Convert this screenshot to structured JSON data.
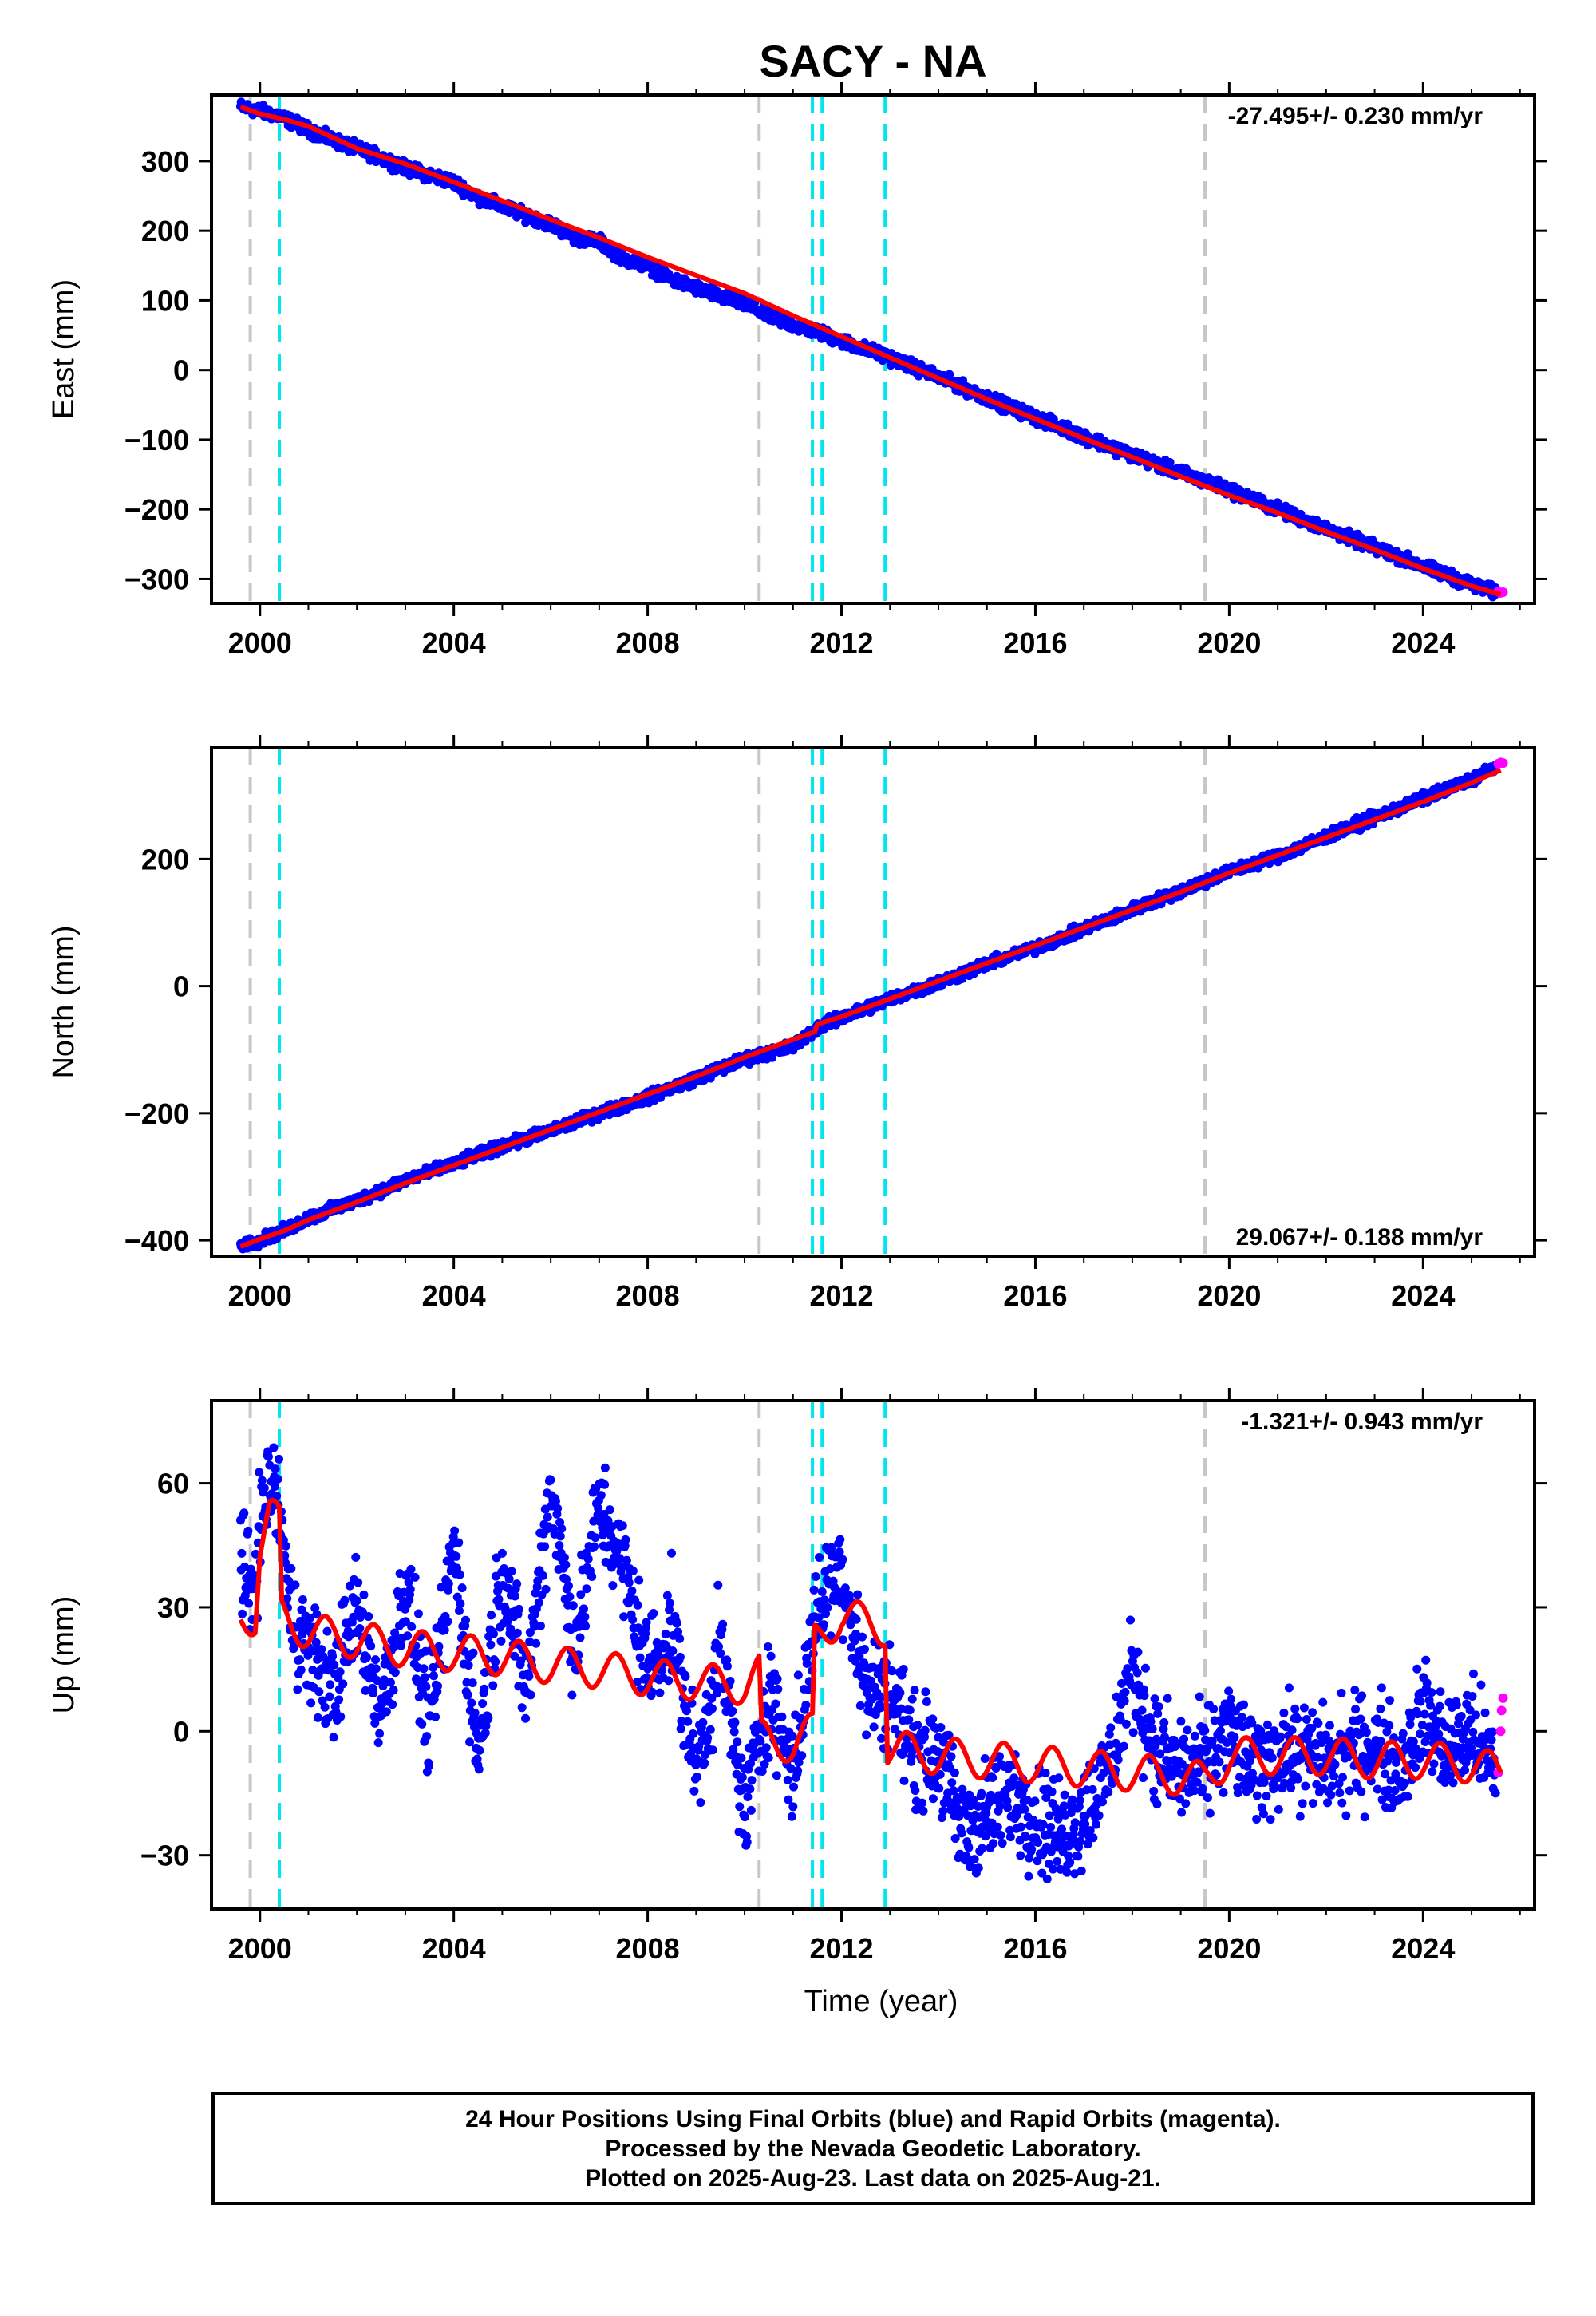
{
  "chart_data": [
    {
      "type": "scatter",
      "title": "SACY - NA",
      "ylabel": "East (mm)",
      "xlabel": "",
      "xlim": [
        1999.0,
        2026.3
      ],
      "ylim": [
        -335,
        395
      ],
      "xticks": [
        2000,
        2004,
        2008,
        2012,
        2016,
        2020,
        2024
      ],
      "yticks": [
        -300,
        -200,
        -100,
        0,
        100,
        200,
        300
      ],
      "ytick_labels": [
        "−300",
        "−200",
        "−100",
        "0",
        "100",
        "200",
        "300"
      ],
      "xtick_labels": [
        "2000",
        "2004",
        "2008",
        "2012",
        "2016",
        "2020",
        "2024"
      ],
      "annotation": "-27.495+/- 0.230 mm/yr",
      "annotation_position": "top-right",
      "grid": false,
      "velocity_mm_per_yr": -27.495,
      "series": [
        {
          "name": "Final Orbits",
          "color": "#0000ff",
          "x": [
            1999.6,
            2000.0,
            2000.4,
            2001.0,
            2001.5,
            2002.0,
            2002.5,
            2003.0,
            2003.5,
            2004.0,
            2004.5,
            2005.0,
            2005.5,
            2006.0,
            2006.5,
            2007.0,
            2007.5,
            2008.0,
            2008.5,
            2009.0,
            2009.5,
            2010.0,
            2010.5,
            2011.0,
            2011.5,
            2012.0,
            2012.5,
            2013.0,
            2014.0,
            2015.0,
            2016.0,
            2017.0,
            2018.0,
            2019.0,
            2019.5,
            2020.0,
            2021.0,
            2022.0,
            2023.0,
            2024.0,
            2025.0,
            2025.5
          ],
          "y": [
            378,
            372,
            365,
            345,
            330,
            318,
            305,
            290,
            280,
            270,
            248,
            235,
            222,
            210,
            190,
            185,
            160,
            150,
            130,
            118,
            105,
            95,
            78,
            65,
            55,
            42,
            30,
            18,
            -10,
            -40,
            -68,
            -95,
            -122,
            -148,
            -160,
            -172,
            -200,
            -228,
            -255,
            -282,
            -308,
            -320
          ]
        },
        {
          "name": "Rapid Orbits",
          "color": "#ff00ff",
          "x": [
            2025.55,
            2025.6,
            2025.65
          ],
          "y": [
            -318,
            -320,
            -319
          ]
        },
        {
          "name": "Model",
          "color": "#ff0000",
          "x": [
            1999.6,
            2000.0,
            2000.5,
            2001.0,
            2002.0,
            2003.0,
            2004.0,
            2005.0,
            2006.0,
            2007.0,
            2008.0,
            2009.0,
            2010.0,
            2011.0,
            2012.0,
            2013.0,
            2014.0,
            2015.0,
            2016.0,
            2017.0,
            2018.0,
            2019.0,
            2020.0,
            2021.0,
            2022.0,
            2023.0,
            2024.0,
            2025.0,
            2025.6
          ],
          "y": [
            378,
            368,
            360,
            350,
            318,
            296,
            270,
            243,
            216,
            190,
            162,
            136,
            110,
            78,
            48,
            18,
            -12,
            -42,
            -70,
            -98,
            -125,
            -153,
            -180,
            -205,
            -232,
            -258,
            -285,
            -310,
            -322
          ]
        }
      ],
      "vlines_gray": [
        1999.8,
        2010.3,
        2019.5
      ],
      "vlines_cyan": [
        2000.4,
        2011.4,
        2011.6,
        2012.9
      ]
    },
    {
      "type": "scatter",
      "title": "",
      "ylabel": "North (mm)",
      "xlabel": "",
      "xlim": [
        1999.0,
        2026.3
      ],
      "ylim": [
        -425,
        375
      ],
      "xticks": [
        2000,
        2004,
        2008,
        2012,
        2016,
        2020,
        2024
      ],
      "yticks": [
        -400,
        -200,
        0,
        200
      ],
      "ytick_labels": [
        "−400",
        "−200",
        "0",
        "200"
      ],
      "xtick_labels": [
        "2000",
        "2004",
        "2008",
        "2012",
        "2016",
        "2020",
        "2024"
      ],
      "annotation": "29.067+/- 0.188 mm/yr",
      "annotation_position": "bottom-right",
      "grid": false,
      "velocity_mm_per_yr": 29.067,
      "series": [
        {
          "name": "Final Orbits",
          "color": "#0000ff",
          "x": [
            1999.6,
            2000.0,
            2000.5,
            2001.0,
            2002.0,
            2003.0,
            2004.0,
            2005.0,
            2006.0,
            2007.0,
            2008.0,
            2009.0,
            2010.0,
            2011.0,
            2011.5,
            2012.0,
            2013.0,
            2014.0,
            2015.0,
            2016.0,
            2017.0,
            2018.0,
            2019.0,
            2020.0,
            2021.0,
            2022.0,
            2023.0,
            2024.0,
            2025.0,
            2025.5
          ],
          "y": [
            -408,
            -400,
            -385,
            -365,
            -338,
            -305,
            -280,
            -252,
            -228,
            -200,
            -175,
            -145,
            -115,
            -95,
            -65,
            -50,
            -20,
            5,
            35,
            60,
            90,
            120,
            150,
            180,
            205,
            235,
            265,
            295,
            325,
            345
          ]
        },
        {
          "name": "Rapid Orbits",
          "color": "#ff00ff",
          "x": [
            2025.55,
            2025.6,
            2025.65
          ],
          "y": [
            350,
            352,
            351
          ]
        },
        {
          "name": "Model",
          "color": "#ff0000",
          "x": [
            1999.6,
            2000.0,
            2000.5,
            2001.0,
            2002.0,
            2003.0,
            2004.0,
            2005.0,
            2006.0,
            2007.0,
            2008.0,
            2009.0,
            2010.0,
            2011.0,
            2011.45,
            2011.5,
            2012.0,
            2013.0,
            2014.0,
            2015.0,
            2016.0,
            2017.0,
            2018.0,
            2019.0,
            2020.0,
            2021.0,
            2022.0,
            2023.0,
            2024.0,
            2025.0,
            2025.6
          ],
          "y": [
            -410,
            -398,
            -385,
            -368,
            -340,
            -310,
            -282,
            -254,
            -226,
            -198,
            -170,
            -142,
            -112,
            -84,
            -72,
            -60,
            -48,
            -20,
            8,
            36,
            64,
            92,
            120,
            148,
            178,
            206,
            234,
            262,
            290,
            320,
            340
          ]
        }
      ],
      "vlines_gray": [
        1999.8,
        2010.3,
        2019.5
      ],
      "vlines_cyan": [
        2000.4,
        2011.4,
        2011.6,
        2012.9
      ]
    },
    {
      "type": "scatter",
      "title": "",
      "ylabel": "Up (mm)",
      "xlabel": "Time (year)",
      "xlim": [
        1999.0,
        2026.3
      ],
      "ylim": [
        -43,
        80
      ],
      "xticks": [
        2000,
        2004,
        2008,
        2012,
        2016,
        2020,
        2024
      ],
      "yticks": [
        -30,
        0,
        30,
        60
      ],
      "ytick_labels": [
        "−30",
        "0",
        "30",
        "60"
      ],
      "xtick_labels": [
        "2000",
        "2004",
        "2008",
        "2012",
        "2016",
        "2020",
        "2024"
      ],
      "annotation": "-1.321+/- 0.943 mm/yr",
      "annotation_position": "top-right",
      "grid": false,
      "velocity_mm_per_yr": -1.321,
      "series": [
        {
          "name": "Final Orbits",
          "color": "#0000ff",
          "x": [
            1999.6,
            1999.8,
            2000.0,
            2000.2,
            2000.4,
            2000.6,
            2001.0,
            2001.5,
            2002.0,
            2002.5,
            2003.0,
            2003.5,
            2004.0,
            2004.5,
            2005.0,
            2005.5,
            2006.0,
            2006.5,
            2007.0,
            2007.5,
            2008.0,
            2008.5,
            2009.0,
            2009.5,
            2010.0,
            2010.5,
            2011.0,
            2011.5,
            2012.0,
            2012.5,
            2013.0,
            2013.5,
            2014.0,
            2014.5,
            2015.0,
            2015.5,
            2016.0,
            2016.5,
            2017.0,
            2017.5,
            2018.0,
            2018.5,
            2019.0,
            2019.5,
            2020.0,
            2020.5,
            2021.0,
            2021.5,
            2022.0,
            2022.5,
            2023.0,
            2023.5,
            2024.0,
            2024.5,
            2025.0,
            2025.5
          ],
          "y": [
            45,
            30,
            50,
            60,
            55,
            30,
            20,
            10,
            30,
            5,
            35,
            0,
            45,
            -5,
            40,
            10,
            60,
            20,
            55,
            40,
            15,
            25,
            -10,
            20,
            -20,
            10,
            -10,
            30,
            40,
            10,
            10,
            -5,
            -5,
            -25,
            -20,
            -15,
            -20,
            -25,
            -20,
            -10,
            15,
            -5,
            -10,
            -8,
            0,
            -10,
            -5,
            -5,
            -8,
            -5,
            -3,
            -10,
            5,
            -5,
            0,
            -10
          ]
        },
        {
          "name": "Rapid Orbits",
          "color": "#ff00ff",
          "x": [
            2025.55,
            2025.6,
            2025.62,
            2025.65
          ],
          "y": [
            -10,
            0,
            5,
            8
          ]
        },
        {
          "name": "Model",
          "color": "#ff0000",
          "x": [
            1999.6,
            1999.9,
            2000.0,
            2000.2,
            2000.4,
            2000.45,
            2001.0,
            2002.0,
            2003.0,
            2004.0,
            2005.0,
            2006.0,
            2007.0,
            2008.0,
            2009.0,
            2010.0,
            2010.3,
            2010.35,
            2011.0,
            2011.4,
            2011.45,
            2012.0,
            2012.9,
            2012.95,
            2014.0,
            2015.0,
            2016.0,
            2017.0,
            2018.0,
            2019.0,
            2019.5,
            2020.0,
            2021.0,
            2022.0,
            2023.0,
            2024.0,
            2025.0,
            2025.6
          ],
          "y": [
            27,
            28,
            45,
            53,
            50,
            28,
            24,
            22,
            20,
            19,
            18,
            16,
            15,
            13,
            12,
            11,
            14,
            -2,
            -3,
            0,
            22,
            28,
            25,
            -4,
            -6,
            -7,
            -8,
            -9,
            -10,
            -11,
            -12,
            -6,
            -6,
            -6,
            -7,
            -7,
            -8,
            -10
          ]
        }
      ],
      "vlines_gray": [
        1999.8,
        2010.3,
        2019.5
      ],
      "vlines_cyan": [
        2000.4,
        2011.4,
        2011.6,
        2012.9
      ]
    }
  ],
  "footer": {
    "line1": "24 Hour Positions Using Final Orbits (blue) and Rapid Orbits (magenta).",
    "line2": "Processed by the Nevada Geodetic Laboratory.",
    "line3": "Plotted on 2025-Aug-23. Last data on 2025-Aug-21."
  },
  "colors": {
    "final_orbits": "#0000ff",
    "rapid_orbits": "#ff00ff",
    "model": "#ff0000",
    "gray_lines": "#c8c8c8",
    "cyan_lines": "#00e5ee"
  }
}
